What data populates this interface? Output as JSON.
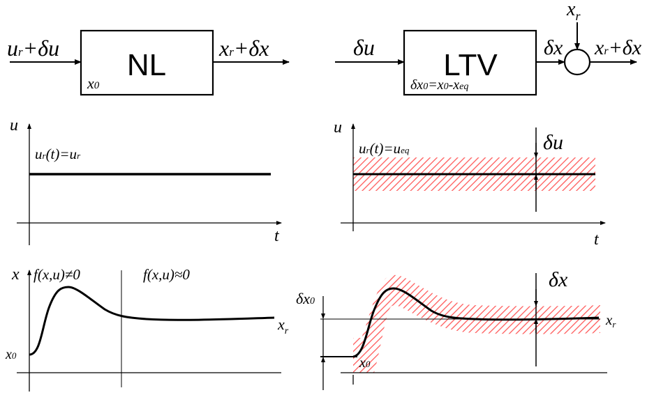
{
  "colors": {
    "stroke": "#000000",
    "hatch": "#ff5a5a",
    "background": "#ffffff"
  },
  "top_left_block": {
    "name": "NL",
    "input": "u",
    "input_sub": "r",
    "input_tail": "+δu",
    "output": "x",
    "output_sub": "r",
    "output_tail": "+δx",
    "state": "x",
    "state_sub": "0"
  },
  "top_right_block": {
    "name": "LTV",
    "input": "δu",
    "output": "δx",
    "state": "δx",
    "state_sub": "0",
    "state_eq": "=x",
    "state_eq_sub": "0",
    "state_minus": "-x",
    "state_minus_sub": "eq",
    "sum_input": "x",
    "sum_input_sub": "r",
    "sum_output": "x",
    "sum_output_sub": "r",
    "sum_output_tail": "+δx"
  },
  "mid_left_plot": {
    "ylabel": "u",
    "xlabel": "t",
    "curve_label": "u",
    "curve_label_sub": "r",
    "curve_label_paren": "(t)=u",
    "curve_label_sub2": "r"
  },
  "mid_right_plot": {
    "ylabel": "u",
    "xlabel": "t",
    "curve_label": "u",
    "curve_label_sub": "r",
    "curve_label_paren": "(t)=u",
    "curve_label_sub2": "eq",
    "perturbation": "δu"
  },
  "bottom_left_plot": {
    "ylabel": "x",
    "region1": "f(x,u)≠0",
    "region2": "f(x,u)≈0",
    "ref_label": "x",
    "ref_label_sub": "r",
    "init_label": "x",
    "init_label_sub": "0"
  },
  "bottom_right_plot": {
    "init_offset": "δx",
    "init_offset_sub": "0",
    "perturbation": "δx",
    "ref_label": "x",
    "ref_label_sub": "r",
    "init_label": "x",
    "init_label_sub": "0"
  }
}
